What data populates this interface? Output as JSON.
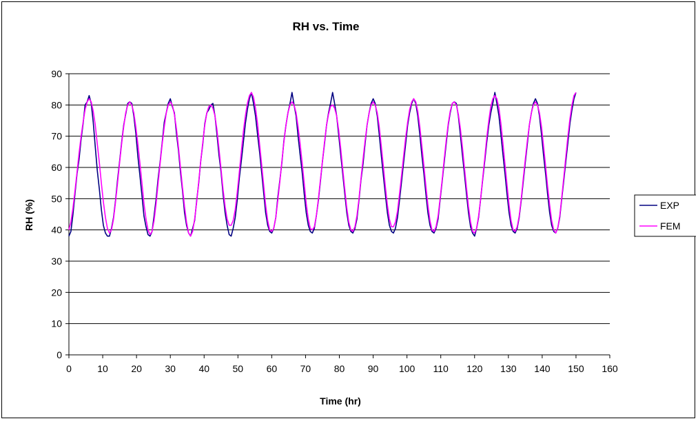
{
  "chart_data": {
    "type": "line",
    "title": "RH vs. Time",
    "xlabel": "Time (hr)",
    "ylabel": "RH (%)",
    "xlim": [
      0,
      160
    ],
    "ylim": [
      0,
      90
    ],
    "x_ticks": [
      "0",
      "10",
      "20",
      "30",
      "40",
      "50",
      "60",
      "70",
      "80",
      "90",
      "100",
      "110",
      "120",
      "130",
      "140",
      "150",
      "160"
    ],
    "y_ticks": [
      "0",
      "10",
      "20",
      "30",
      "40",
      "50",
      "60",
      "70",
      "80",
      "90"
    ],
    "grid": "horizontal",
    "legend_position": "right",
    "series": [
      {
        "name": "EXP",
        "color": "#000080",
        "x": [
          0,
          0.6,
          1.2,
          1.8,
          2.4,
          3,
          3.6,
          4.2,
          4.8,
          5.4,
          6,
          6.6,
          7.2,
          7.8,
          8.4,
          9,
          9.6,
          10.2,
          10.8,
          11.4,
          12,
          12.6,
          13.2,
          13.8,
          14.4,
          15,
          15.6,
          16.2,
          16.8,
          17.4,
          18,
          18.6,
          19.2,
          19.8,
          20.4,
          21,
          21.6,
          22.2,
          22.8,
          23.4,
          24,
          24.6,
          25.2,
          25.8,
          26.4,
          27,
          27.6,
          28.2,
          28.8,
          29.4,
          30,
          30.6,
          31.2,
          31.8,
          32.4,
          33,
          33.6,
          34.2,
          34.8,
          35.4,
          36,
          36.6,
          37.2,
          37.8,
          38.4,
          39,
          39.6,
          40.2,
          40.8,
          41.4,
          42,
          42.6,
          43.2,
          43.8,
          44.4,
          45,
          45.6,
          46.2,
          46.8,
          47.4,
          48,
          48.6,
          49.2,
          49.8,
          50.4,
          51,
          51.6,
          52.2,
          52.8,
          53.4,
          54,
          54.6,
          55.2,
          55.8,
          56.4,
          57,
          57.6,
          58.2,
          58.8,
          59.4,
          60,
          60.6,
          61.2,
          61.8,
          62.4,
          63,
          63.6,
          64.2,
          64.8,
          65.4,
          66,
          66.6,
          67.2,
          67.8,
          68.4,
          69,
          69.6,
          70.2,
          70.8,
          71.4,
          72,
          72.6,
          73.2,
          73.8,
          74.4,
          75,
          75.6,
          76.2,
          76.8,
          77.4,
          78,
          78.6,
          79.2,
          79.8,
          80.4,
          81,
          81.6,
          82.2,
          82.8,
          83.4,
          84,
          84.6,
          85.2,
          85.8,
          86.4,
          87,
          87.6,
          88.2,
          88.8,
          89.4,
          90,
          90.6,
          91.2,
          91.8,
          92.4,
          93,
          93.6,
          94.2,
          94.8,
          95.4,
          96,
          96.6,
          97.2,
          97.8,
          98.4,
          99,
          99.6,
          100.2,
          100.8,
          101.4,
          102,
          102.6,
          103.2,
          103.8,
          104.4,
          105,
          105.6,
          106.2,
          106.8,
          107.4,
          108,
          108.6,
          109.2,
          109.8,
          110.4,
          111,
          111.6,
          112.2,
          112.8,
          113.4,
          114,
          114.6,
          115.2,
          115.8,
          116.4,
          117,
          117.6,
          118.2,
          118.8,
          119.4,
          120,
          120.6,
          121.2,
          121.8,
          122.4,
          123,
          123.6,
          124.2,
          124.8,
          125.4,
          126,
          126.6,
          127.2,
          127.8,
          128.4,
          129,
          129.6,
          130.2,
          130.8,
          131.4,
          132,
          132.6,
          133.2,
          133.8,
          134.4,
          135,
          135.6,
          136.2,
          136.8,
          137.4,
          138,
          138.6,
          139.2,
          139.8,
          140.4,
          141,
          141.6,
          142.2,
          142.8,
          143.4,
          144,
          144.6,
          145.2,
          145.8,
          146.4,
          147,
          147.6,
          148.2,
          148.8,
          149.4,
          150
        ],
        "values": [
          38,
          39.5,
          45,
          51.5,
          58,
          62.5,
          69,
          74,
          80,
          81,
          83,
          80.5,
          74.5,
          66.5,
          59,
          53,
          46.5,
          41.5,
          39,
          38,
          38,
          40.5,
          44,
          49.5,
          56,
          62,
          68,
          73.5,
          77,
          80.5,
          81,
          80.5,
          76.5,
          71,
          63.5,
          57.5,
          51,
          44.5,
          41,
          38.5,
          38,
          39.5,
          44.5,
          50,
          56.5,
          62,
          68,
          74.5,
          77.5,
          80.5,
          82,
          79.5,
          77.5,
          71,
          65.5,
          58.5,
          52.5,
          45.5,
          41.5,
          39,
          38,
          40.5,
          43,
          49.5,
          55,
          62,
          67.5,
          74,
          77.5,
          78.5,
          80,
          80.5,
          76.5,
          70.5,
          64,
          58.5,
          51.5,
          45.5,
          41.5,
          38.5,
          38,
          40.5,
          44,
          49.5,
          56.5,
          62,
          68,
          74,
          78.5,
          82,
          84,
          80.5,
          76.5,
          70.5,
          65,
          58.5,
          52,
          45.5,
          41.5,
          39.5,
          39,
          40.5,
          44,
          50.5,
          56,
          61.5,
          68.5,
          73.5,
          77.5,
          80.5,
          84,
          80,
          76.5,
          70,
          64,
          58.5,
          51.5,
          45.5,
          41.5,
          39.5,
          39,
          40.5,
          44.5,
          49.5,
          55.5,
          62,
          67.5,
          73.5,
          77.5,
          80.5,
          84,
          80.5,
          76.5,
          70.5,
          64,
          58,
          51.5,
          45.5,
          41.5,
          39.5,
          39,
          40.5,
          43.5,
          49.5,
          56,
          61,
          67.5,
          73.5,
          77.5,
          80.5,
          82,
          80.5,
          76.5,
          70.5,
          64,
          57.5,
          51.5,
          45.5,
          41.5,
          39.5,
          39,
          40.5,
          44,
          49.5,
          55.5,
          61.5,
          67.5,
          73.5,
          77.5,
          80.5,
          82,
          80.5,
          76.5,
          70.5,
          64,
          58,
          51.5,
          45.5,
          41.5,
          39.5,
          39,
          40.5,
          43.5,
          49.5,
          55.5,
          61.5,
          67.5,
          73.5,
          77.5,
          80.5,
          81,
          80.5,
          76.5,
          70.5,
          64,
          58,
          51.5,
          45.5,
          41,
          39,
          38,
          40.5,
          44,
          50,
          56,
          62,
          68,
          73.5,
          77.5,
          80.5,
          84,
          80.5,
          76.5,
          70.5,
          64,
          58,
          51.5,
          45.5,
          41.5,
          39.5,
          39,
          40.5,
          44,
          49.5,
          55.5,
          61.5,
          67.5,
          73.5,
          77.5,
          80.5,
          82,
          80.5,
          76.5,
          70.5,
          64,
          58,
          51.5,
          45.5,
          41.5,
          39.5,
          39,
          40.5,
          44,
          50,
          56,
          62,
          68,
          74,
          78.5,
          82,
          84
        ]
      },
      {
        "name": "FEM",
        "color": "#FF00FF",
        "x": [
          0,
          0.6,
          1.2,
          1.8,
          2.4,
          3,
          3.6,
          4.2,
          4.8,
          5.4,
          6,
          6.6,
          7.2,
          7.8,
          8.4,
          9,
          9.6,
          10.2,
          10.8,
          11.4,
          12,
          12.6,
          13.2,
          13.8,
          14.4,
          15,
          15.6,
          16.2,
          16.8,
          17.4,
          18,
          18.6,
          19.2,
          19.8,
          20.4,
          21,
          21.6,
          22.2,
          22.8,
          23.4,
          24,
          24.6,
          25.2,
          25.8,
          26.4,
          27,
          27.6,
          28.2,
          28.8,
          29.4,
          30,
          30.6,
          31.2,
          31.8,
          32.4,
          33,
          33.6,
          34.2,
          34.8,
          35.4,
          36,
          36.6,
          37.2,
          37.8,
          38.4,
          39,
          39.6,
          40.2,
          40.8,
          41.4,
          42,
          42.6,
          43.2,
          43.8,
          44.4,
          45,
          45.6,
          46.2,
          46.8,
          47.4,
          48,
          48.6,
          49.2,
          49.8,
          50.4,
          51,
          51.6,
          52.2,
          52.8,
          53.4,
          54,
          54.6,
          55.2,
          55.8,
          56.4,
          57,
          57.6,
          58.2,
          58.8,
          59.4,
          60,
          60.6,
          61.2,
          61.8,
          62.4,
          63,
          63.6,
          64.2,
          64.8,
          65.4,
          66,
          66.6,
          67.2,
          67.8,
          68.4,
          69,
          69.6,
          70.2,
          70.8,
          71.4,
          72,
          72.6,
          73.2,
          73.8,
          74.4,
          75,
          75.6,
          76.2,
          76.8,
          77.4,
          78,
          78.6,
          79.2,
          79.8,
          80.4,
          81,
          81.6,
          82.2,
          82.8,
          83.4,
          84,
          84.6,
          85.2,
          85.8,
          86.4,
          87,
          87.6,
          88.2,
          88.8,
          89.4,
          90,
          90.6,
          91.2,
          91.8,
          92.4,
          93,
          93.6,
          94.2,
          94.8,
          95.4,
          96,
          96.6,
          97.2,
          97.8,
          98.4,
          99,
          99.6,
          100.2,
          100.8,
          101.4,
          102,
          102.6,
          103.2,
          103.8,
          104.4,
          105,
          105.6,
          106.2,
          106.8,
          107.4,
          108,
          108.6,
          109.2,
          109.8,
          110.4,
          111,
          111.6,
          112.2,
          112.8,
          113.4,
          114,
          114.6,
          115.2,
          115.8,
          116.4,
          117,
          117.6,
          118.2,
          118.8,
          119.4,
          120,
          120.6,
          121.2,
          121.8,
          122.4,
          123,
          123.6,
          124.2,
          124.8,
          125.4,
          126,
          126.6,
          127.2,
          127.8,
          128.4,
          129,
          129.6,
          130.2,
          130.8,
          131.4,
          132,
          132.6,
          133.2,
          133.8,
          134.4,
          135,
          135.6,
          136.2,
          136.8,
          137.4,
          138,
          138.6,
          139.2,
          139.8,
          140.4,
          141,
          141.6,
          142.2,
          142.8,
          143.4,
          144,
          144.6,
          145.2,
          145.8,
          146.4,
          147,
          147.6,
          148.2,
          148.8,
          149.4,
          150
        ],
        "values": [
          40,
          42.5,
          47,
          52.5,
          58.5,
          64.5,
          70,
          74.5,
          78.5,
          81,
          82,
          81,
          78,
          73.5,
          67.5,
          61.5,
          55,
          49,
          44,
          40.5,
          39,
          40,
          43.5,
          49,
          55,
          61.5,
          67.5,
          73,
          77.5,
          80,
          81,
          80,
          77.5,
          73,
          67.5,
          61.5,
          55,
          48.5,
          43.5,
          40,
          38.5,
          39.5,
          43,
          48.5,
          55,
          61.5,
          67.5,
          73,
          77.5,
          80,
          81,
          80,
          77,
          72.5,
          66.5,
          60,
          53.5,
          47.5,
          42.5,
          39,
          38,
          39.5,
          43.5,
          49,
          55.5,
          62,
          68,
          73.5,
          77.5,
          79.5,
          80,
          79,
          76.5,
          72,
          66,
          59.5,
          53,
          47.5,
          43.5,
          41.5,
          41.5,
          43,
          46.5,
          52,
          58.5,
          65,
          71.5,
          76.5,
          80.5,
          83,
          84,
          82.5,
          79,
          74,
          67.5,
          61,
          54.5,
          48,
          43,
          40,
          39.5,
          40.5,
          44,
          49.5,
          55.5,
          62,
          68,
          73.5,
          77.5,
          80,
          81,
          80,
          77.5,
          73,
          67.5,
          61.5,
          55,
          48.5,
          43.5,
          40.5,
          40,
          41,
          44.5,
          50,
          56,
          62,
          68,
          73.5,
          77,
          79.5,
          80,
          79,
          76.5,
          72,
          66,
          59.5,
          53,
          47,
          42.5,
          40,
          39.5,
          41,
          44.5,
          50,
          56.5,
          62.5,
          68.5,
          73.5,
          77.5,
          80,
          81,
          80,
          77.5,
          73,
          67,
          60.5,
          54,
          48,
          43.5,
          41,
          41,
          42.5,
          46,
          51.5,
          57.5,
          63.5,
          69.5,
          74.5,
          78.5,
          81,
          82,
          81,
          78,
          73,
          67,
          60.5,
          54,
          48,
          43,
          40,
          39.5,
          41,
          44.5,
          50,
          56,
          62.5,
          68.5,
          74,
          78,
          80.5,
          81,
          80,
          77,
          72.5,
          66.5,
          60,
          53.5,
          47.5,
          42.5,
          39.5,
          39,
          40.5,
          44.5,
          50,
          56.5,
          63,
          69.5,
          75,
          79.5,
          82,
          83,
          82,
          79,
          74,
          67.5,
          61,
          54.5,
          48,
          43,
          40,
          39.5,
          41,
          44.5,
          50,
          56.5,
          62.5,
          68.5,
          73.5,
          77.5,
          80,
          81,
          80,
          77.5,
          73,
          67,
          60.5,
          54,
          48,
          43,
          40,
          39,
          40.5,
          44.5,
          50.5,
          57,
          63.5,
          70,
          75.5,
          80,
          83,
          84
        ]
      }
    ]
  }
}
